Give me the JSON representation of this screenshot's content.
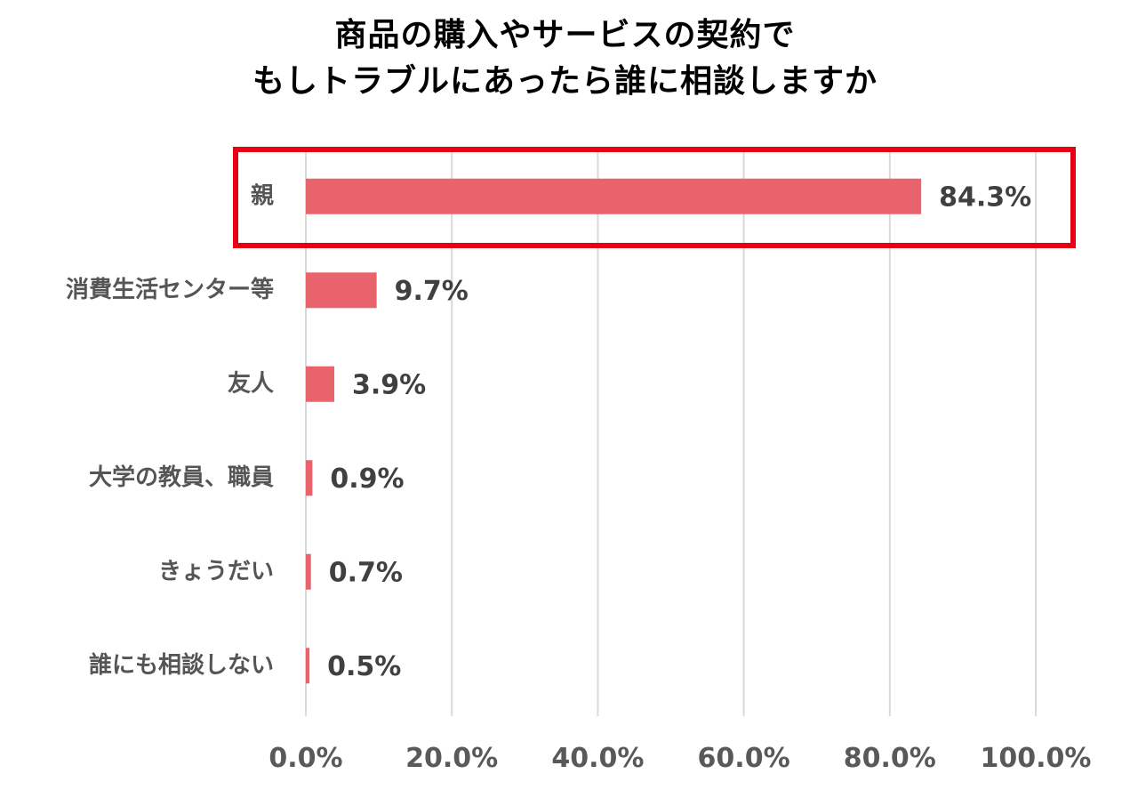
{
  "title_lines": [
    "商品の購入やサービスの契約で",
    "もしトラブルにあったら誰に相談しますか"
  ],
  "colors": {
    "bar": "#E9636D",
    "highlight_box": "#E60012",
    "grid": "#D9D9D9"
  },
  "chart_data": {
    "type": "bar",
    "orientation": "horizontal",
    "title": "商品の購入やサービスの契約で もしトラブルにあったら誰に相談しますか",
    "categories": [
      "親",
      "消費生活センター等",
      "友人",
      "大学の教員、職員",
      "きょうだい",
      "誰にも相談しない"
    ],
    "values": [
      84.3,
      9.7,
      3.9,
      0.9,
      0.7,
      0.5
    ],
    "value_labels": [
      "84.3%",
      "9.7%",
      "3.9%",
      "0.9%",
      "0.7%",
      "0.5%"
    ],
    "xlim": [
      0,
      100
    ],
    "x_ticks": [
      0,
      20,
      40,
      60,
      80,
      100
    ],
    "x_tick_labels": [
      "0.0%",
      "20.0%",
      "40.0%",
      "60.0%",
      "80.0%",
      "100.0%"
    ],
    "grid": true,
    "legend": "none",
    "highlighted_category": "親"
  }
}
